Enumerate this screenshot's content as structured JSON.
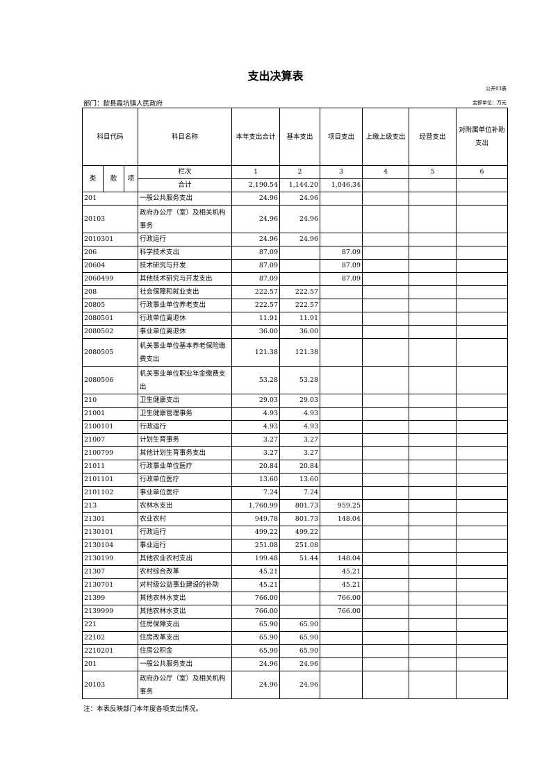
{
  "title": "支出决算表",
  "form_no": "公开03表",
  "department": "部门：歙县霞坑镇人民政府",
  "unit": "金额单位：万元",
  "headers": {
    "code": "科目代码",
    "name": "科目名称",
    "total": "本年支出合计",
    "basic": "基本支出",
    "project": "项目支出",
    "upper": "上缴上级支出",
    "business": "经营支出",
    "subsidy": "对附属单位补助支出",
    "lei": "类",
    "kuan": "款",
    "xiang": "项",
    "lanci": "栏次",
    "c1": "1",
    "c2": "2",
    "c3": "3",
    "c4": "4",
    "c5": "5",
    "c6": "6"
  },
  "total_row": {
    "label": "合计",
    "total": "2,190.54",
    "basic": "1,144.20",
    "project": "1,046.34"
  },
  "rows": [
    {
      "code": "201",
      "name": "一般公共服务支出",
      "total": "24.96",
      "basic": "24.96",
      "project": ""
    },
    {
      "code": "20103",
      "name": "政府办公厅（室）及相关机构事务",
      "total": "24.96",
      "basic": "24.96",
      "project": "",
      "tall": true
    },
    {
      "code": "2010301",
      "name": "行政运行",
      "total": "24.96",
      "basic": "24.96",
      "project": ""
    },
    {
      "code": "206",
      "name": "科学技术支出",
      "total": "87.09",
      "basic": "",
      "project": "87.09"
    },
    {
      "code": "20604",
      "name": "技术研究与开发",
      "total": "87.09",
      "basic": "",
      "project": "87.09"
    },
    {
      "code": "2060499",
      "name": "其他技术研究与开发支出",
      "total": "87.09",
      "basic": "",
      "project": "87.09"
    },
    {
      "code": "208",
      "name": "社会保障和就业支出",
      "total": "222.57",
      "basic": "222.57",
      "project": ""
    },
    {
      "code": "20805",
      "name": "行政事业单位养老支出",
      "total": "222.57",
      "basic": "222.57",
      "project": ""
    },
    {
      "code": "2080501",
      "name": "行政单位离退休",
      "total": "11.91",
      "basic": "11.91",
      "project": ""
    },
    {
      "code": "2080502",
      "name": "事业单位离退休",
      "total": "36.00",
      "basic": "36.00",
      "project": ""
    },
    {
      "code": "2080505",
      "name": "机关事业单位基本养老保险缴费支出",
      "total": "121.38",
      "basic": "121.38",
      "project": "",
      "tall": true
    },
    {
      "code": "2080506",
      "name": "机关事业单位职业年金缴费支出",
      "total": "53.28",
      "basic": "53.28",
      "project": "",
      "tall": true
    },
    {
      "code": "210",
      "name": "卫生健康支出",
      "total": "29.03",
      "basic": "29.03",
      "project": ""
    },
    {
      "code": "21001",
      "name": "卫生健康管理事务",
      "total": "4.93",
      "basic": "4.93",
      "project": ""
    },
    {
      "code": "2100101",
      "name": "行政运行",
      "total": "4.93",
      "basic": "4.93",
      "project": ""
    },
    {
      "code": "21007",
      "name": "计划生育事务",
      "total": "3.27",
      "basic": "3.27",
      "project": ""
    },
    {
      "code": "2100799",
      "name": "其他计划生育事务支出",
      "total": "3.27",
      "basic": "3.27",
      "project": ""
    },
    {
      "code": "21011",
      "name": "行政事业单位医疗",
      "total": "20.84",
      "basic": "20.84",
      "project": ""
    },
    {
      "code": "2101101",
      "name": "行政单位医疗",
      "total": "13.60",
      "basic": "13.60",
      "project": ""
    },
    {
      "code": "2101102",
      "name": "事业单位医疗",
      "total": "7.24",
      "basic": "7.24",
      "project": ""
    },
    {
      "code": "213",
      "name": "农林水支出",
      "total": "1,760.99",
      "basic": "801.73",
      "project": "959.25"
    },
    {
      "code": "21301",
      "name": "农业农村",
      "total": "949.78",
      "basic": "801.73",
      "project": "148.04"
    },
    {
      "code": "2130101",
      "name": "行政运行",
      "total": "499.22",
      "basic": "499.22",
      "project": ""
    },
    {
      "code": "2130104",
      "name": "事业运行",
      "total": "251.08",
      "basic": "251.08",
      "project": ""
    },
    {
      "code": "2130199",
      "name": "其他农业农村支出",
      "total": "199.48",
      "basic": "51.44",
      "project": "148.04"
    },
    {
      "code": "21307",
      "name": "农村综合改革",
      "total": "45.21",
      "basic": "",
      "project": "45.21"
    },
    {
      "code": "2130701",
      "name": "对村级公益事业建设的补助",
      "total": "45.21",
      "basic": "",
      "project": "45.21"
    },
    {
      "code": "21399",
      "name": "其他农林水支出",
      "total": "766.00",
      "basic": "",
      "project": "766.00"
    },
    {
      "code": "2139999",
      "name": "其他农林水支出",
      "total": "766.00",
      "basic": "",
      "project": "766.00"
    },
    {
      "code": "221",
      "name": "住房保障支出",
      "total": "65.90",
      "basic": "65.90",
      "project": ""
    },
    {
      "code": "22102",
      "name": "住房改革支出",
      "total": "65.90",
      "basic": "65.90",
      "project": ""
    },
    {
      "code": "2210201",
      "name": "住房公积金",
      "total": "65.90",
      "basic": "65.90",
      "project": ""
    },
    {
      "code": "201",
      "name": "一般公共服务支出",
      "total": "24.96",
      "basic": "24.96",
      "project": ""
    },
    {
      "code": "20103",
      "name": "政府办公厅（室）及相关机构事务",
      "total": "24.96",
      "basic": "24.96",
      "project": "",
      "tall": true
    }
  ],
  "note": "注：本表反映部门本年度各项支出情况。"
}
